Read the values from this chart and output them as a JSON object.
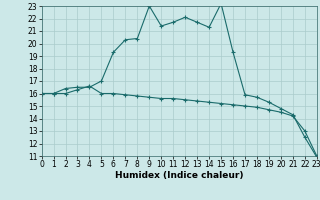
{
  "xlabel": "Humidex (Indice chaleur)",
  "bg_color": "#cce8e8",
  "grid_color": "#aacccc",
  "line_color": "#1a6b6b",
  "marker": "+",
  "x_line1": [
    0,
    1,
    2,
    3,
    4,
    5,
    6,
    7,
    8,
    9,
    10,
    11,
    12,
    13,
    14,
    15,
    16,
    17,
    18,
    19,
    20,
    21,
    22,
    23
  ],
  "y_line1": [
    16.0,
    16.0,
    16.4,
    16.5,
    16.5,
    17.0,
    19.3,
    20.3,
    20.4,
    23.0,
    21.4,
    21.7,
    22.1,
    21.7,
    21.3,
    23.2,
    19.3,
    15.9,
    15.7,
    15.3,
    14.8,
    14.3,
    12.5,
    10.9
  ],
  "x_line2": [
    0,
    1,
    2,
    3,
    4,
    5,
    6,
    7,
    8,
    9,
    10,
    11,
    12,
    13,
    14,
    15,
    16,
    17,
    18,
    19,
    20,
    21,
    22,
    23
  ],
  "y_line2": [
    16.0,
    16.0,
    16.0,
    16.3,
    16.6,
    16.0,
    16.0,
    15.9,
    15.8,
    15.7,
    15.6,
    15.6,
    15.5,
    15.4,
    15.3,
    15.2,
    15.1,
    15.0,
    14.9,
    14.7,
    14.5,
    14.2,
    13.0,
    11.0
  ],
  "ylim": [
    11,
    23
  ],
  "xlim": [
    0,
    23
  ],
  "yticks": [
    11,
    12,
    13,
    14,
    15,
    16,
    17,
    18,
    19,
    20,
    21,
    22,
    23
  ],
  "xticks": [
    0,
    1,
    2,
    3,
    4,
    5,
    6,
    7,
    8,
    9,
    10,
    11,
    12,
    13,
    14,
    15,
    16,
    17,
    18,
    19,
    20,
    21,
    22,
    23
  ],
  "xlabel_fontsize": 6.5,
  "tick_fontsize": 5.5
}
